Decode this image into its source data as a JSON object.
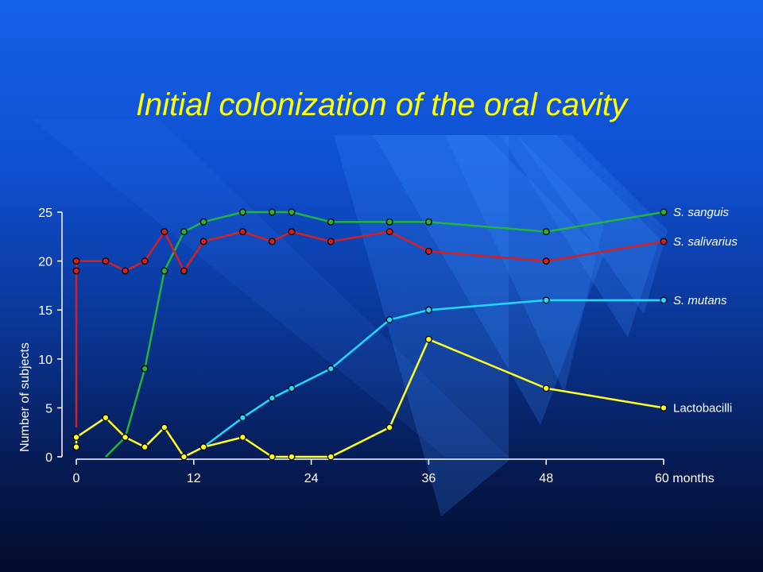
{
  "slide": {
    "title": "Initial colonization of the oral cavity"
  },
  "chart_data": {
    "type": "line",
    "title": "Initial colonization of the oral cavity",
    "xlabel": "",
    "x_unit_label": "months",
    "ylabel": "Number of subjects",
    "xlim": [
      0,
      60
    ],
    "ylim": [
      0,
      25
    ],
    "x_ticks": [
      0,
      12,
      24,
      36,
      48,
      60
    ],
    "x_tick_labels": [
      "0",
      "12",
      "24",
      "36",
      "48",
      "60 months"
    ],
    "y_ticks": [
      0,
      5,
      10,
      15,
      20,
      25
    ],
    "y_tick_labels": [
      "0",
      "5",
      "10",
      "15",
      "20",
      "25"
    ],
    "grid": false,
    "legend": "direct-labels-right",
    "series": [
      {
        "name": "S. sanguis",
        "italic": true,
        "color": "#22b43c",
        "line_start": [
          [
            3,
            0
          ],
          [
            5,
            2
          ]
        ],
        "points": [
          [
            5,
            2
          ],
          [
            7,
            9
          ],
          [
            9,
            19
          ],
          [
            11,
            23
          ],
          [
            13,
            24
          ],
          [
            17,
            25
          ],
          [
            20,
            25
          ],
          [
            22,
            25
          ],
          [
            26,
            24
          ],
          [
            32,
            24
          ],
          [
            36,
            24
          ],
          [
            48,
            23
          ],
          [
            60,
            25
          ]
        ]
      },
      {
        "name": "S. salivarius",
        "italic": true,
        "color": "#d42020",
        "line_start": [
          [
            0,
            3
          ],
          [
            0,
            19
          ]
        ],
        "points": [
          [
            0,
            19
          ],
          [
            0,
            20
          ],
          [
            3,
            20
          ],
          [
            5,
            19
          ],
          [
            7,
            20
          ],
          [
            9,
            23
          ],
          [
            11,
            19
          ],
          [
            13,
            22
          ],
          [
            17,
            23
          ],
          [
            20,
            22
          ],
          [
            22,
            23
          ],
          [
            26,
            22
          ],
          [
            32,
            23
          ],
          [
            36,
            21
          ],
          [
            48,
            20
          ],
          [
            60,
            22
          ]
        ]
      },
      {
        "name": "S. mutans",
        "italic": true,
        "color": "#22d8ff",
        "line_start": [],
        "points": [
          [
            13,
            1
          ],
          [
            17,
            4
          ],
          [
            20,
            6
          ],
          [
            22,
            7
          ],
          [
            26,
            9
          ],
          [
            32,
            14
          ],
          [
            36,
            15
          ],
          [
            48,
            16
          ],
          [
            60,
            16
          ]
        ]
      },
      {
        "name": "Lactobacilli",
        "italic": false,
        "color": "#ffff20",
        "line_start": [],
        "points": [
          [
            0,
            1
          ],
          [
            0,
            2
          ],
          [
            3,
            4
          ],
          [
            5,
            2
          ],
          [
            7,
            1
          ],
          [
            9,
            3
          ],
          [
            11,
            0
          ],
          [
            13,
            1
          ],
          [
            17,
            2
          ],
          [
            20,
            0
          ],
          [
            22,
            0
          ],
          [
            26,
            0
          ],
          [
            32,
            3
          ],
          [
            36,
            12
          ],
          [
            48,
            7
          ],
          [
            60,
            5
          ]
        ]
      }
    ]
  },
  "colors": {
    "title": "#ffff00",
    "axis": "#ffffff",
    "marker_stroke": "#000000"
  }
}
